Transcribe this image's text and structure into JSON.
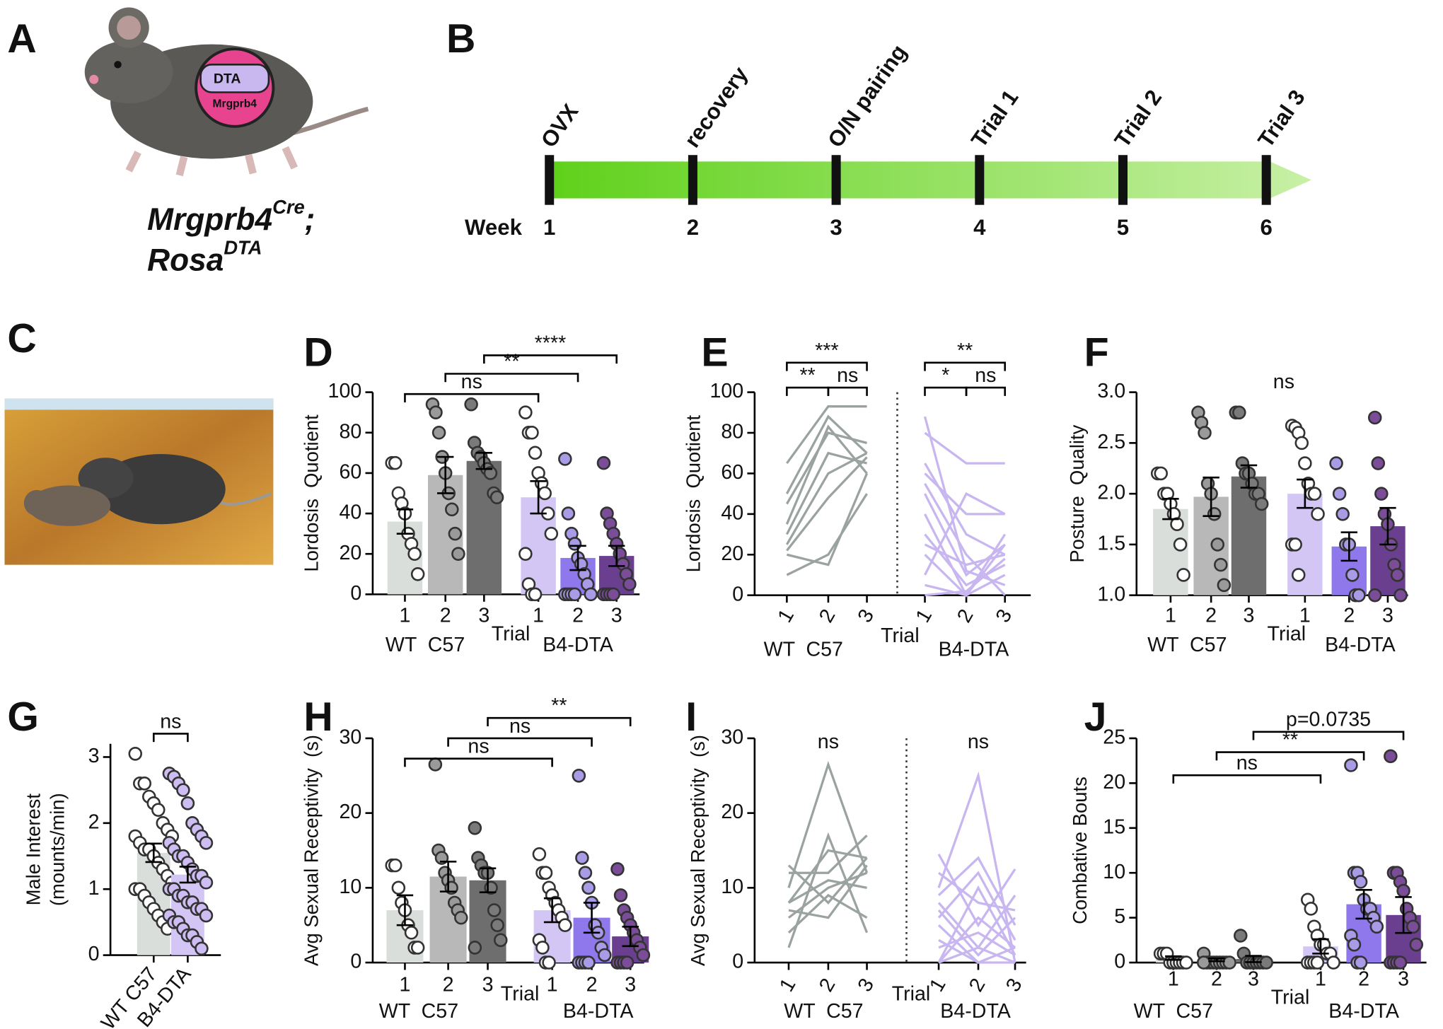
{
  "panel_a": {
    "panel": "A",
    "badge": [
      "DTA",
      "Mrgprb4"
    ],
    "genotype": [
      {
        "text": "Mrgprb4",
        "sup": "Cre",
        "suffix": ";"
      },
      {
        "text": "Rosa",
        "sup": "DTA"
      }
    ]
  },
  "panel_b": {
    "panel": "B",
    "axis_label": "Week",
    "events": [
      {
        "label": "OVX",
        "week": 1
      },
      {
        "label": "recovery",
        "week": 2
      },
      {
        "label": "O/N pairing",
        "week": 3
      },
      {
        "label": "Trial 1",
        "week": 4
      },
      {
        "label": "Trial 2",
        "week": 5
      },
      {
        "label": "Trial 3",
        "week": 6
      }
    ]
  },
  "panel_c": {
    "panel": "C"
  },
  "chart_data": [
    {
      "type": "bar",
      "panel": "D",
      "ylabel": "Lordosis  Quotient",
      "ylim": [
        0,
        100
      ],
      "yticks": [
        0,
        20,
        40,
        60,
        80,
        100
      ],
      "categories": [
        "1",
        "2",
        "3",
        "1",
        "2",
        "3"
      ],
      "groups": [
        "WT  C57",
        "B4-DTA"
      ],
      "group_axis_label": "Trial",
      "values": [
        36,
        59,
        66,
        48,
        18,
        19
      ],
      "errors": [
        6,
        9,
        4,
        8,
        6,
        5
      ],
      "points": [
        [
          65,
          65,
          50,
          45,
          40,
          30,
          25,
          20,
          10
        ],
        [
          94,
          90,
          80,
          68,
          60,
          50,
          42,
          30,
          20
        ],
        [
          94,
          75,
          70,
          68,
          65,
          62,
          60,
          50,
          48
        ],
        [
          90,
          80,
          80,
          70,
          60,
          55,
          50,
          40,
          30,
          20,
          5,
          0,
          0
        ],
        [
          67,
          40,
          30,
          25,
          18,
          15,
          10,
          5,
          0,
          0,
          0,
          0,
          0
        ],
        [
          65,
          40,
          35,
          30,
          25,
          20,
          15,
          10,
          5,
          0,
          0,
          0,
          0
        ]
      ],
      "colors": [
        "#d9deda",
        "#b8b8b8",
        "#6e6e6e",
        "#d3c6f5",
        "#8e78ec",
        "#6a3f8f"
      ],
      "point_colors": [
        "#ffffff",
        "#9a9a9a",
        "#7a7a7a",
        "#ffffff",
        "#a99be6",
        "#7b4d99"
      ],
      "comparisons": [
        {
          "label": "ns",
          "bars": [
            0,
            3
          ]
        },
        {
          "label": "**",
          "bars": [
            1,
            4
          ]
        },
        {
          "label": "****",
          "bars": [
            2,
            5
          ]
        }
      ]
    },
    {
      "type": "line",
      "panel": "E",
      "ylabel": "Lordosis  Quotient",
      "ylim": [
        0,
        100
      ],
      "yticks": [
        0,
        20,
        40,
        60,
        80,
        100
      ],
      "categories": [
        "1",
        "2",
        "3"
      ],
      "group_axis_label": "Trial",
      "groups": [
        {
          "name": "WT  C57",
          "color": "#9aa39f",
          "lines": [
            [
              65,
              93,
              93
            ],
            [
              50,
              88,
              70
            ],
            [
              45,
              80,
              75
            ],
            [
              35,
              83,
              60
            ],
            [
              30,
              70,
              65
            ],
            [
              25,
              60,
              70
            ],
            [
              22,
              48,
              68
            ],
            [
              20,
              15,
              60
            ],
            [
              10,
              20,
              50
            ]
          ],
          "comparisons": [
            {
              "label": "**",
              "bars": [
                0,
                1
              ]
            },
            {
              "label": "ns",
              "bars": [
                1,
                2
              ]
            },
            {
              "label": "***",
              "bars": [
                0,
                2
              ]
            }
          ]
        },
        {
          "name": "B4-DTA",
          "color": "#c7b6ef",
          "lines": [
            [
              88,
              12,
              5
            ],
            [
              80,
              65,
              65
            ],
            [
              65,
              30,
              20
            ],
            [
              60,
              40,
              40
            ],
            [
              55,
              20,
              0
            ],
            [
              50,
              10,
              25
            ],
            [
              40,
              0,
              30
            ],
            [
              30,
              5,
              15
            ],
            [
              25,
              15,
              20
            ],
            [
              20,
              0,
              10
            ],
            [
              10,
              50,
              40
            ],
            [
              5,
              0,
              25
            ],
            [
              0,
              2,
              18
            ]
          ],
          "comparisons": [
            {
              "label": "*",
              "bars": [
                0,
                1
              ]
            },
            {
              "label": "ns",
              "bars": [
                1,
                2
              ]
            },
            {
              "label": "**",
              "bars": [
                0,
                2
              ]
            }
          ]
        }
      ]
    },
    {
      "type": "bar",
      "panel": "F",
      "ylabel": "Posture  Quality",
      "ylim": [
        1,
        3
      ],
      "yticks": [
        {
          "value": 1,
          "label": "1.0"
        },
        1.5,
        {
          "value": 2,
          "label": "2.0"
        },
        2.5,
        {
          "value": 3,
          "label": "3.0"
        }
      ],
      "categories": [
        "1",
        "2",
        "3",
        "1",
        "2",
        "3"
      ],
      "groups": [
        "WT  C57",
        "B4-DTA"
      ],
      "group_axis_label": "Trial",
      "annotation": "ns",
      "values": [
        1.85,
        1.97,
        2.17,
        2.0,
        1.48,
        1.68
      ],
      "errors": [
        0.1,
        0.19,
        0.11,
        0.14,
        0.14,
        0.18
      ],
      "points": [
        [
          2.2,
          2.2,
          2.0,
          2.0,
          1.9,
          1.8,
          1.7,
          1.5,
          1.2
        ],
        [
          2.8,
          2.7,
          2.6,
          2.1,
          2.0,
          1.8,
          1.5,
          1.3,
          1.1
        ],
        [
          2.8,
          2.8,
          2.3,
          2.2,
          2.2,
          2.1,
          2.0,
          2.0,
          1.9
        ],
        [
          2.67,
          2.65,
          2.6,
          2.5,
          2.3,
          2.1,
          2.0,
          2.0,
          1.8,
          1.5,
          1.5,
          1.2
        ],
        [
          2.3,
          2.0,
          1.8,
          1.5,
          1.5,
          1.2,
          1.0,
          1.0
        ],
        [
          2.75,
          2.3,
          2.0,
          1.8,
          1.7,
          1.5,
          1.3,
          1.2,
          1.0,
          1.0
        ]
      ],
      "colors": [
        "#d9deda",
        "#b8b8b8",
        "#6e6e6e",
        "#d3c6f5",
        "#8e78ec",
        "#6a3f8f"
      ],
      "point_colors": [
        "#ffffff",
        "#9a9a9a",
        "#7a7a7a",
        "#ffffff",
        "#a99be6",
        "#7b4d99"
      ]
    },
    {
      "type": "bar",
      "panel": "G",
      "ylabel": [
        "Male Interest",
        "(mounts/min)"
      ],
      "ylim": [
        0,
        3.2
      ],
      "yticks": [
        0,
        1,
        2,
        3
      ],
      "categories": [
        "WT C57",
        "B4-DTA"
      ],
      "values": [
        1.55,
        1.22
      ],
      "errors": [
        0.14,
        0.12
      ],
      "points": [
        [
          3.05,
          2.6,
          2.6,
          2.4,
          2.3,
          2.2,
          2.0,
          1.9,
          1.8,
          1.8,
          1.7,
          1.6,
          1.6,
          1.5,
          1.4,
          1.3,
          1.2,
          1.1,
          1.0,
          1.0,
          0.9,
          0.8,
          0.7,
          0.6,
          0.5,
          0.4
        ],
        [
          2.75,
          2.7,
          2.6,
          2.5,
          2.3,
          2.0,
          1.9,
          1.8,
          1.7,
          1.7,
          1.6,
          1.5,
          1.5,
          1.4,
          1.3,
          1.2,
          1.2,
          1.1,
          1.0,
          1.0,
          0.9,
          0.9,
          0.8,
          0.8,
          0.7,
          0.7,
          0.6,
          0.6,
          0.5,
          0.5,
          0.4,
          0.3,
          0.3,
          0.2,
          0.1
        ]
      ],
      "colors": [
        "#d9deda",
        "#d3c6f5"
      ],
      "point_colors": [
        "#ffffff",
        "#cdbdf2"
      ],
      "comparisons": [
        {
          "label": "ns",
          "bars": [
            0,
            1
          ]
        }
      ]
    },
    {
      "type": "bar",
      "panel": "H",
      "ylabel": "Avg Sexual Receptivity  (s)",
      "ylim": [
        0,
        30
      ],
      "yticks": [
        0,
        10,
        20,
        30
      ],
      "categories": [
        "1",
        "2",
        "3",
        "1",
        "2",
        "3"
      ],
      "groups": [
        "WT  C57",
        "B4-DTA"
      ],
      "group_axis_label": "Trial",
      "values": [
        7,
        11.5,
        11,
        7,
        6,
        3.5
      ],
      "errors": [
        2,
        2,
        1.6,
        1.6,
        2,
        1.3
      ],
      "points": [
        [
          13,
          13,
          10,
          8,
          7,
          5,
          4,
          2,
          2
        ],
        [
          26.5,
          15,
          14,
          12,
          11,
          10,
          8,
          7,
          6
        ],
        [
          18,
          14,
          13,
          12,
          12,
          10,
          7,
          5,
          3,
          2
        ],
        [
          14.5,
          12,
          12,
          10,
          9,
          8,
          7,
          6,
          5,
          3,
          2,
          0,
          0
        ],
        [
          25,
          14,
          12,
          10,
          8,
          5,
          4,
          2,
          1,
          0,
          0,
          0,
          0
        ],
        [
          12.5,
          9,
          7,
          6,
          5,
          4,
          3,
          2,
          1,
          0,
          0,
          0,
          0
        ]
      ],
      "colors": [
        "#d9deda",
        "#b8b8b8",
        "#6e6e6e",
        "#d3c6f5",
        "#8e78ec",
        "#6a3f8f"
      ],
      "point_colors": [
        "#ffffff",
        "#9a9a9a",
        "#7a7a7a",
        "#ffffff",
        "#a99be6",
        "#7b4d99"
      ],
      "comparisons": [
        {
          "label": "ns",
          "bars": [
            0,
            3
          ]
        },
        {
          "label": "ns",
          "bars": [
            1,
            4
          ]
        },
        {
          "label": "**",
          "bars": [
            2,
            5
          ]
        }
      ]
    },
    {
      "type": "line",
      "panel": "I",
      "ylabel": "Avg Sexual Receptivity  (s)",
      "ylim": [
        0,
        30
      ],
      "yticks": [
        0,
        10,
        20,
        30
      ],
      "categories": [
        "1",
        "2",
        "3"
      ],
      "group_axis_label": "Trial",
      "groups": [
        {
          "name": "WT  C57",
          "color": "#9aa39f",
          "annotation": "ns",
          "lines": [
            [
              13,
              8,
              14
            ],
            [
              12,
              12,
              17
            ],
            [
              10,
              26.5,
              12
            ],
            [
              8,
              15,
              14
            ],
            [
              8,
              11,
              10
            ],
            [
              7,
              6,
              13
            ],
            [
              6,
              10,
              12
            ],
            [
              4,
              9,
              6
            ],
            [
              2,
              17,
              4
            ]
          ]
        },
        {
          "name": "B4-DTA",
          "color": "#c7b6ef",
          "annotation": "ns",
          "lines": [
            [
              14.5,
              5,
              12.5
            ],
            [
              12,
              8,
              7
            ],
            [
              10,
              25,
              0
            ],
            [
              9,
              14,
              5
            ],
            [
              8,
              2,
              9
            ],
            [
              7,
              1,
              6
            ],
            [
              6,
              12,
              3
            ],
            [
              5,
              0,
              2
            ],
            [
              3,
              0,
              0
            ],
            [
              2,
              4,
              1
            ],
            [
              0,
              2,
              0
            ],
            [
              0,
              6,
              2
            ],
            [
              0,
              10,
              1
            ]
          ]
        }
      ]
    },
    {
      "type": "bar",
      "panel": "J",
      "ylabel": "Combative Bouts",
      "ylim": [
        0,
        25
      ],
      "yticks": [
        0,
        5,
        10,
        15,
        20,
        25
      ],
      "categories": [
        "1",
        "2",
        "3",
        "1",
        "2",
        "3"
      ],
      "groups": [
        "WT  C57",
        "B4-DTA"
      ],
      "group_axis_label": "Trial",
      "values": [
        0.5,
        0.3,
        0.4,
        1.8,
        6.5,
        5.3
      ],
      "errors": [
        0.2,
        0.15,
        0.35,
        0.8,
        1.6,
        2
      ],
      "points": [
        [
          1,
          1,
          1,
          0,
          0,
          0,
          0,
          0,
          0
        ],
        [
          1,
          0,
          0,
          0,
          0,
          0,
          0,
          0,
          0,
          0
        ],
        [
          3,
          1,
          0,
          0,
          0,
          0,
          0,
          0,
          0
        ],
        [
          7,
          6,
          4,
          3,
          2,
          2,
          1,
          1,
          0,
          0,
          0,
          0,
          0
        ],
        [
          22,
          10,
          10,
          9,
          7,
          6,
          6,
          5,
          4,
          3,
          2,
          0,
          0
        ],
        [
          23,
          10,
          10,
          9,
          8,
          6,
          5,
          4,
          2,
          0,
          0,
          0,
          0
        ]
      ],
      "colors": [
        "#d9deda",
        "#b8b8b8",
        "#6e6e6e",
        "#d3c6f5",
        "#8e78ec",
        "#6a3f8f"
      ],
      "point_colors": [
        "#ffffff",
        "#9a9a9a",
        "#7a7a7a",
        "#ffffff",
        "#a99be6",
        "#7b4d99"
      ],
      "comparisons": [
        {
          "label": "ns",
          "bars": [
            0,
            3
          ]
        },
        {
          "label": "**",
          "bars": [
            1,
            4
          ]
        },
        {
          "label": "p=0.0735",
          "bars": [
            2,
            5
          ]
        }
      ]
    }
  ]
}
